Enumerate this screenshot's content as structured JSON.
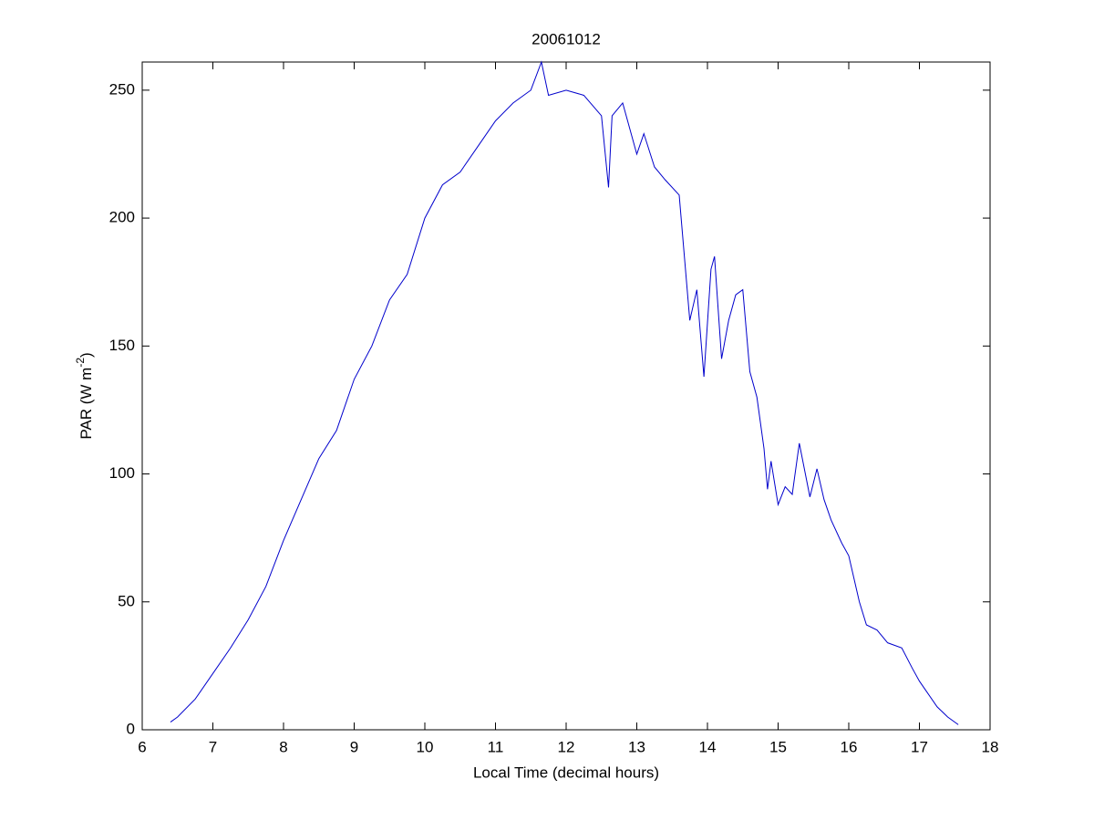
{
  "chart_data": {
    "type": "line",
    "title": "20061012",
    "xlabel": "Local Time (decimal hours)",
    "ylabel": {
      "text": "PAR (W m",
      "sup": "-2",
      "end": ")"
    },
    "xlim": [
      6,
      18
    ],
    "xticks": [
      6,
      7,
      8,
      9,
      10,
      11,
      12,
      13,
      14,
      15,
      16,
      17,
      18
    ],
    "ylim": [
      0,
      261
    ],
    "yticks": [
      0,
      50,
      100,
      150,
      200,
      250
    ],
    "grid": false,
    "series": [
      {
        "color": "#0000cc",
        "x": [
          6.4,
          6.5,
          6.75,
          7.0,
          7.25,
          7.5,
          7.75,
          8.0,
          8.25,
          8.5,
          8.75,
          9.0,
          9.25,
          9.5,
          9.75,
          10.0,
          10.25,
          10.5,
          10.75,
          11.0,
          11.25,
          11.5,
          11.65,
          11.75,
          12.0,
          12.25,
          12.5,
          12.6,
          12.65,
          12.8,
          13.0,
          13.1,
          13.25,
          13.4,
          13.6,
          13.75,
          13.85,
          13.95,
          14.05,
          14.1,
          14.2,
          14.3,
          14.4,
          14.5,
          14.6,
          14.7,
          14.8,
          14.85,
          14.9,
          15.0,
          15.1,
          15.2,
          15.3,
          15.45,
          15.55,
          15.65,
          15.75,
          15.9,
          16.0,
          16.15,
          16.25,
          16.4,
          16.55,
          16.75,
          16.9,
          17.0,
          17.1,
          17.25,
          17.4,
          17.55
        ],
        "values": [
          3,
          5,
          12,
          22,
          32,
          43,
          56,
          74,
          90,
          106,
          117,
          137,
          150,
          168,
          178,
          200,
          213,
          218,
          228,
          238,
          245,
          250,
          261,
          248,
          250,
          248,
          240,
          212,
          240,
          245,
          225,
          233,
          220,
          215,
          209,
          160,
          172,
          138,
          180,
          185,
          145,
          160,
          170,
          172,
          140,
          130,
          110,
          94,
          105,
          88,
          95,
          92,
          112,
          91,
          102,
          90,
          82,
          73,
          68,
          50,
          41,
          39,
          34,
          32,
          24,
          19,
          15,
          9,
          5,
          2
        ]
      }
    ]
  }
}
